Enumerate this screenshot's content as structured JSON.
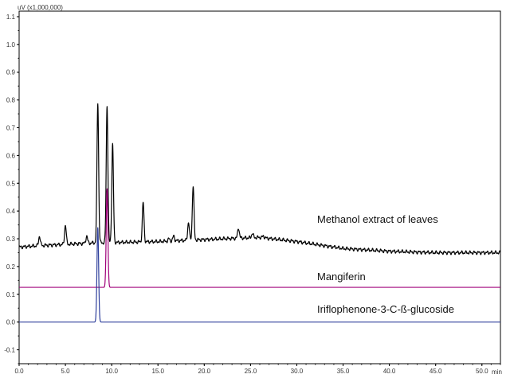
{
  "chart_data": {
    "type": "line",
    "ylabel": "uV (x1,000,000)",
    "xlabel": "min",
    "xlim": [
      0,
      52
    ],
    "ylim": [
      -0.15,
      1.12
    ],
    "x_ticks": [
      0.0,
      5.0,
      10.0,
      15.0,
      20.0,
      25.0,
      30.0,
      35.0,
      40.0,
      45.0,
      50.0
    ],
    "x_tick_labels": [
      "0.0",
      "5.0",
      "10.0",
      "15.0",
      "20.0",
      "25.0",
      "30.0",
      "35.0",
      "40.0",
      "45.0",
      "50.0"
    ],
    "y_ticks": [
      -0.1,
      0.0,
      0.1,
      0.2,
      0.3,
      0.4,
      0.5,
      0.6,
      0.7,
      0.8,
      0.9,
      1.0,
      1.1
    ],
    "y_tick_labels": [
      "-0.1",
      "0.0",
      "0.1",
      "0.2",
      "0.3",
      "0.4",
      "0.5",
      "0.6",
      "0.7",
      "0.8",
      "0.9",
      "1.0",
      "1.1"
    ],
    "grid": false,
    "series": [
      {
        "name": "Methanol extract of leaves",
        "color": "#000000",
        "baseline": 0.27,
        "drift": [
          [
            0,
            0.27
          ],
          [
            2,
            0.275
          ],
          [
            8,
            0.285
          ],
          [
            15,
            0.29
          ],
          [
            22,
            0.3
          ],
          [
            26,
            0.305
          ],
          [
            30,
            0.29
          ],
          [
            35,
            0.265
          ],
          [
            40,
            0.255
          ],
          [
            45,
            0.25
          ],
          [
            52,
            0.25
          ]
        ],
        "peaks": [
          {
            "rt": 2.2,
            "height": 0.31
          },
          {
            "rt": 5.0,
            "height": 0.35
          },
          {
            "rt": 7.3,
            "height": 0.31
          },
          {
            "rt": 8.5,
            "height": 0.79
          },
          {
            "rt": 9.5,
            "height": 0.78
          },
          {
            "rt": 10.1,
            "height": 0.64
          },
          {
            "rt": 13.4,
            "height": 0.43
          },
          {
            "rt": 16.2,
            "height": 0.3
          },
          {
            "rt": 16.7,
            "height": 0.31
          },
          {
            "rt": 18.3,
            "height": 0.36
          },
          {
            "rt": 18.8,
            "height": 0.49
          },
          {
            "rt": 23.7,
            "height": 0.34
          },
          {
            "rt": 25.2,
            "height": 0.32
          },
          {
            "rt": 26.4,
            "height": 0.31
          },
          {
            "rt": 34.2,
            "height": 0.27
          }
        ]
      },
      {
        "name": "Mangiferin",
        "color": "#a0007a",
        "baseline": 0.125,
        "drift": [
          [
            0,
            0.125
          ],
          [
            52,
            0.125
          ]
        ],
        "peaks": [
          {
            "rt": 9.5,
            "height": 0.48
          }
        ]
      },
      {
        "name": "Iriflophenone-3-C-ß-glucoside",
        "color": "#2e3f9c",
        "baseline": 0.0,
        "drift": [
          [
            0,
            0.0
          ],
          [
            52,
            0.0
          ]
        ],
        "peaks": [
          {
            "rt": 8.5,
            "height": 0.34
          }
        ]
      }
    ]
  }
}
